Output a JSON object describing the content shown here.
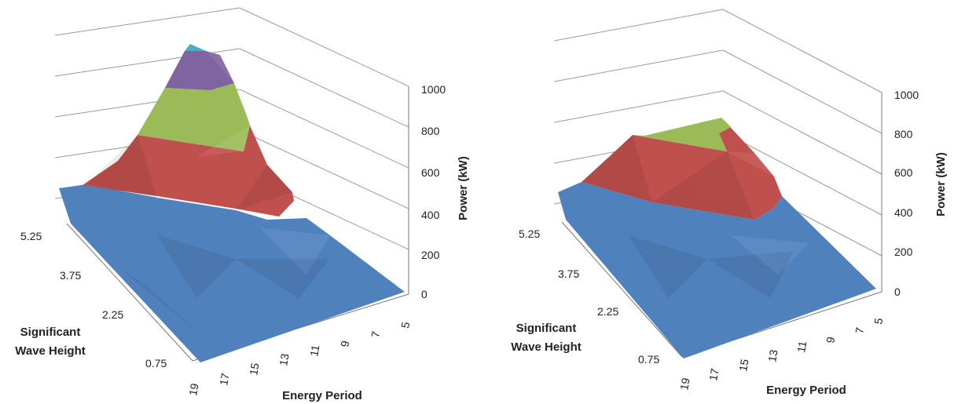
{
  "chart_data": [
    {
      "type": "surface",
      "title": "",
      "xlabel": "Energy Period",
      "ylabel": "Significant Wave Height",
      "zlabel": "Power (kW)",
      "x_ticks": [
        "19",
        "17",
        "15",
        "13",
        "11",
        "9",
        "7",
        "5"
      ],
      "y_ticks": [
        "0.75",
        "2.25",
        "3.75",
        "5.25"
      ],
      "z_ticks": [
        "0",
        "200",
        "400",
        "600",
        "800",
        "1000"
      ],
      "zlim": [
        0,
        1000
      ],
      "bands": [
        {
          "range": "0-200",
          "color": "#4f81bd"
        },
        {
          "range": "200-400",
          "color": "#4f81bd"
        },
        {
          "range": "400-600",
          "color": "#c0504d"
        },
        {
          "range": "600-800",
          "color": "#9bbb59"
        },
        {
          "range": "800-1000",
          "color": "#8064a2"
        },
        {
          "range": "1000+",
          "color": "#4bacc6"
        }
      ],
      "peak_power": 1050
    },
    {
      "type": "surface",
      "title": "",
      "xlabel": "Energy Period",
      "ylabel": "Significant Wave Height",
      "zlabel": "Power (kW)",
      "x_ticks": [
        "19",
        "17",
        "15",
        "13",
        "11",
        "9",
        "7",
        "5"
      ],
      "y_ticks": [
        "0.75",
        "2.25",
        "3.75",
        "5.25"
      ],
      "z_ticks": [
        "0",
        "200",
        "400",
        "600",
        "800",
        "1000"
      ],
      "zlim": [
        0,
        1000
      ],
      "bands": [
        {
          "range": "0-200",
          "color": "#4f81bd"
        },
        {
          "range": "200-400",
          "color": "#4f81bd"
        },
        {
          "range": "400-600",
          "color": "#c0504d"
        },
        {
          "range": "600-800",
          "color": "#9bbb59"
        }
      ],
      "peak_power": 750
    }
  ]
}
